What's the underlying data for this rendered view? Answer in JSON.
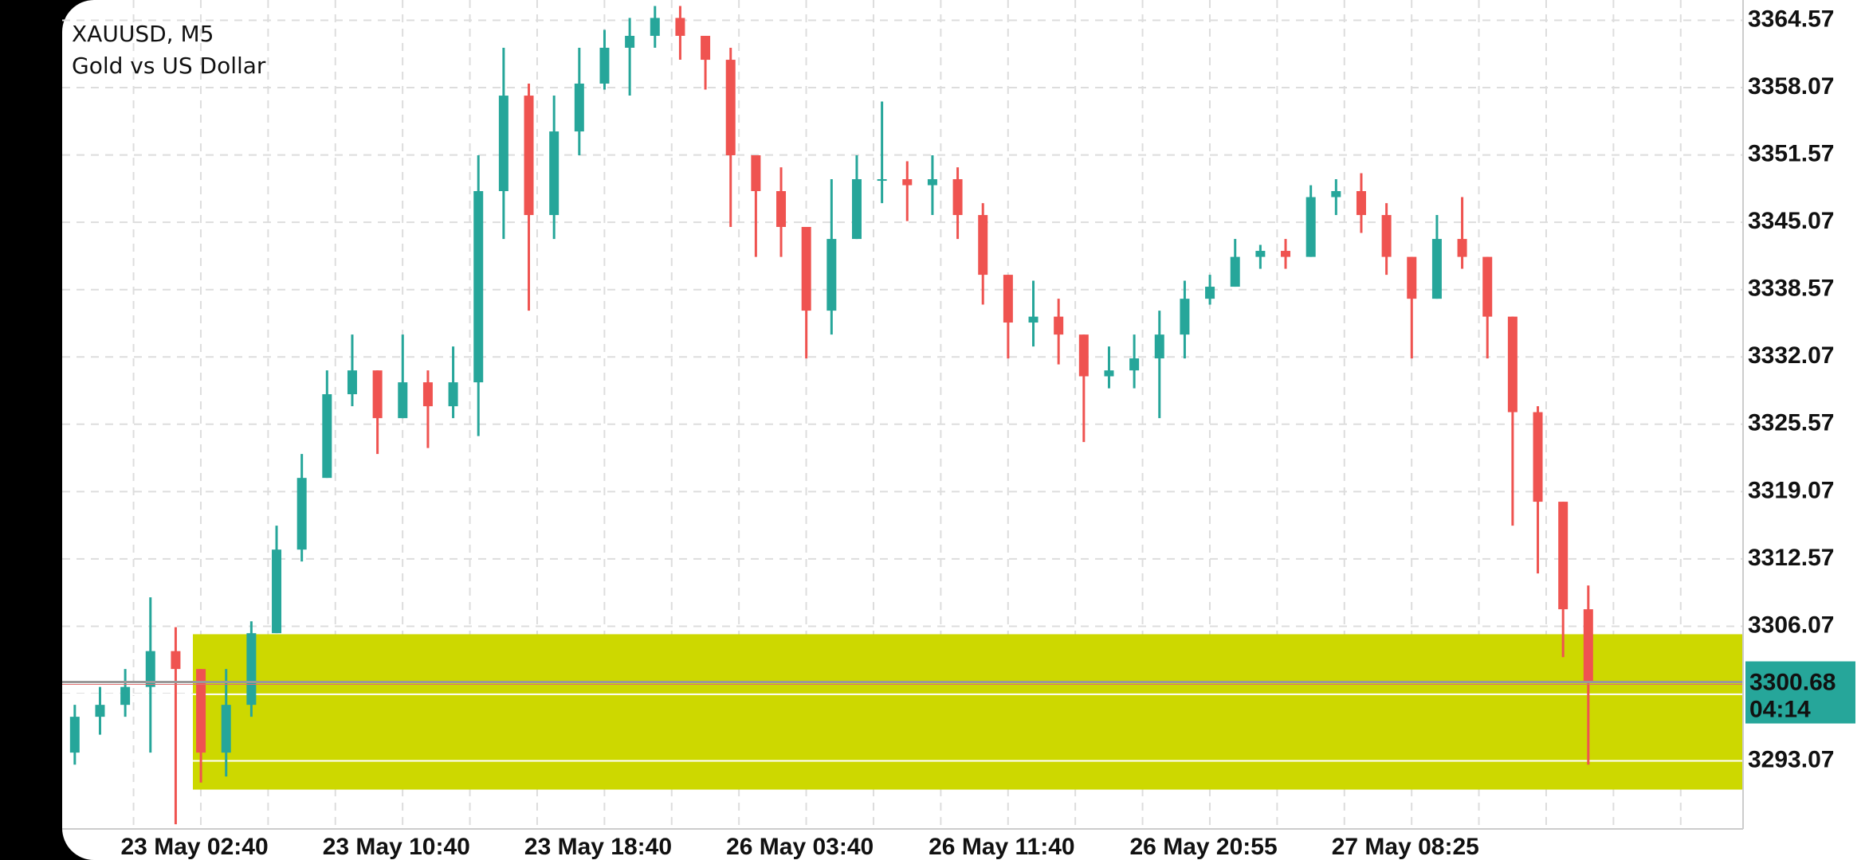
{
  "chart_data": {
    "type": "candlestick",
    "title": "XAUUSD, M5",
    "subtitle": "Gold vs US Dollar",
    "categories": [
      null,
      null,
      null,
      null,
      null,
      "23 May 02:40",
      null,
      null,
      null,
      null,
      null,
      null,
      null,
      "23 May 10:40",
      null,
      null,
      null,
      null,
      null,
      null,
      null,
      "23 May 18:40",
      null,
      null,
      null,
      null,
      null,
      null,
      null,
      "26 May 03:40",
      null,
      null,
      null,
      null,
      null,
      null,
      null,
      "26 May 11:40",
      null,
      null,
      null,
      null,
      null,
      null,
      null,
      "26 May 20:55",
      null,
      null,
      null,
      null,
      null,
      null,
      null,
      "27 May 08:25",
      null,
      null,
      null,
      null,
      null,
      null,
      null
    ],
    "open": [
      3293.87,
      3297.33,
      3298.48,
      3300.21,
      3303.67,
      3301.94,
      3293.87,
      3298.48,
      3305.4,
      3313.47,
      3320.39,
      3328.47,
      3330.77,
      3326.16,
      3329.62,
      3327.31,
      3329.62,
      3348.08,
      3357.3,
      3345.77,
      3353.84,
      3358.46,
      3361.92,
      3363.07,
      3364.8,
      3363.07,
      3360.76,
      3351.54,
      3348.08,
      3344.62,
      3336.54,
      3343.46,
      3349.23,
      3349.23,
      3348.65,
      3349.23,
      3345.77,
      3340.0,
      3335.39,
      3335.96,
      3334.23,
      3330.2,
      3330.77,
      3331.93,
      3334.23,
      3337.69,
      3338.85,
      3341.73,
      3342.31,
      3341.73,
      3347.5,
      3348.08,
      3345.77,
      3341.73,
      3337.69,
      3343.46,
      3341.73,
      3335.96,
      3326.74,
      3318.09,
      3307.71
    ],
    "high": [
      3298.48,
      3300.21,
      3301.94,
      3308.86,
      3305.98,
      3301.94,
      3301.94,
      3306.55,
      3315.78,
      3322.7,
      3330.77,
      3334.23,
      3330.77,
      3334.23,
      3330.77,
      3333.08,
      3351.54,
      3361.92,
      3358.46,
      3357.3,
      3361.92,
      3363.65,
      3364.8,
      3365.95,
      3365.95,
      3363.07,
      3361.92,
      3351.54,
      3350.38,
      3344.62,
      3349.23,
      3351.54,
      3356.73,
      3350.96,
      3351.54,
      3350.38,
      3346.92,
      3340.0,
      3339.43,
      3337.69,
      3334.23,
      3333.08,
      3334.23,
      3336.54,
      3339.43,
      3340.0,
      3343.46,
      3342.89,
      3343.46,
      3348.65,
      3349.23,
      3349.81,
      3346.92,
      3341.73,
      3345.77,
      3347.5,
      3341.73,
      3335.96,
      3327.31,
      3318.09,
      3310.01
    ],
    "low": [
      3292.71,
      3295.6,
      3297.33,
      3293.87,
      3286.95,
      3290.98,
      3291.56,
      3297.33,
      3305.4,
      3312.32,
      3320.39,
      3327.31,
      3322.7,
      3326.16,
      3323.28,
      3326.16,
      3324.43,
      3343.46,
      3336.54,
      3343.46,
      3351.54,
      3357.88,
      3357.3,
      3361.92,
      3360.76,
      3357.88,
      3344.62,
      3341.73,
      3341.73,
      3331.93,
      3334.23,
      3343.46,
      3346.92,
      3345.19,
      3345.77,
      3343.46,
      3337.12,
      3331.93,
      3333.08,
      3331.35,
      3323.85,
      3329.04,
      3329.04,
      3326.16,
      3331.93,
      3337.12,
      3338.85,
      3340.58,
      3340.58,
      3341.73,
      3345.77,
      3344.04,
      3340.0,
      3331.93,
      3337.69,
      3340.58,
      3331.93,
      3315.78,
      3311.17,
      3303.09,
      3292.71
    ],
    "close": [
      3297.33,
      3298.48,
      3300.21,
      3303.67,
      3301.94,
      3293.87,
      3298.48,
      3305.4,
      3313.47,
      3320.39,
      3328.47,
      3330.77,
      3326.16,
      3329.62,
      3327.31,
      3329.62,
      3348.08,
      3357.3,
      3345.77,
      3353.84,
      3358.46,
      3361.92,
      3363.07,
      3364.8,
      3363.07,
      3360.76,
      3351.54,
      3348.08,
      3344.62,
      3336.54,
      3343.46,
      3349.23,
      3349.23,
      3348.65,
      3349.23,
      3345.77,
      3340.0,
      3335.39,
      3335.96,
      3334.23,
      3330.2,
      3330.77,
      3331.93,
      3334.23,
      3337.69,
      3338.85,
      3341.73,
      3342.31,
      3341.73,
      3347.5,
      3348.08,
      3345.77,
      3341.73,
      3337.69,
      3343.46,
      3341.73,
      3335.96,
      3326.74,
      3318.09,
      3307.71,
      3300.68
    ],
    "up_color": "#26a69a",
    "down_color": "#ef5350",
    "ylim": [
      3286.5,
      3366.53
    ],
    "yticks": [
      3293.07,
      {
        "value": 3299.57,
        "label": ""
      },
      3306.07,
      3312.57,
      3319.07,
      3325.57,
      3332.07,
      3338.57,
      3345.07,
      3351.57,
      3358.07,
      3364.57
    ],
    "grid": true,
    "zone": {
      "top": 3305.3,
      "bottom": 3290.3,
      "color": "#cdd800"
    },
    "levels": [
      3299.5,
      3293.07
    ],
    "current_price": 3300.68,
    "timer": "04:14",
    "price_box_color": "#26a69a"
  }
}
